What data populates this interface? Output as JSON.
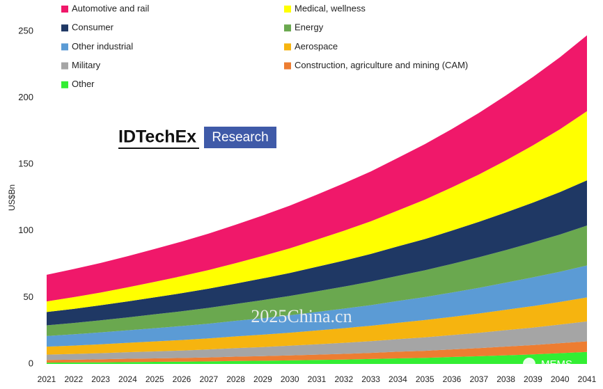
{
  "chart_data": {
    "type": "stacked_area",
    "y_label": "US$Bn",
    "x": [
      2021,
      2022,
      2023,
      2024,
      2025,
      2026,
      2027,
      2028,
      2029,
      2030,
      2031,
      2032,
      2033,
      2034,
      2035,
      2036,
      2037,
      2038,
      2039,
      2040,
      2041
    ],
    "xlim": [
      2021,
      2041
    ],
    "xticks": [
      2021,
      2022,
      2023,
      2024,
      2025,
      2026,
      2027,
      2028,
      2029,
      2030,
      2031,
      2032,
      2033,
      2034,
      2035,
      2036,
      2037,
      2038,
      2039,
      2040,
      2041
    ],
    "ylim": [
      0,
      250
    ],
    "yticks": [
      0,
      50,
      100,
      150,
      200,
      250
    ],
    "grid": false,
    "series": [
      {
        "name": "Automotive and rail",
        "color": "#f0186a",
        "values": [
          20,
          21.1,
          22.2,
          23.4,
          24.7,
          26.0,
          27.4,
          28.9,
          30.4,
          32.1,
          33.8,
          35.6,
          37.5,
          39.6,
          41.7,
          43.9,
          46.3,
          48.8,
          51.4,
          54.1,
          57
        ]
      },
      {
        "name": "Medical, wellness",
        "color": "#ffff00",
        "values": [
          8,
          8.8,
          9.6,
          10.6,
          11.6,
          12.8,
          14.0,
          15.4,
          16.9,
          18.5,
          20.4,
          22.4,
          24.5,
          26.9,
          29.6,
          32.5,
          35.6,
          39.1,
          43.0,
          47.2,
          52
        ]
      },
      {
        "name": "Consumer",
        "color": "#1f3864",
        "values": [
          10,
          10.6,
          11.3,
          12.0,
          12.8,
          13.6,
          14.4,
          15.3,
          16.3,
          17.3,
          18.4,
          19.6,
          20.8,
          22.2,
          23.5,
          25.0,
          26.6,
          28.3,
          30.0,
          31.9,
          34
        ]
      },
      {
        "name": "Energy",
        "color": "#6aa84f",
        "values": [
          8,
          8.5,
          9.1,
          9.7,
          10.4,
          11.1,
          11.9,
          12.7,
          13.6,
          14.5,
          15.5,
          16.5,
          17.7,
          18.9,
          20.1,
          21.5,
          23.0,
          24.5,
          26.2,
          28.0,
          30
        ]
      },
      {
        "name": "Other industrial",
        "color": "#5b9bd5",
        "values": [
          8,
          8.5,
          8.9,
          9.4,
          10,
          10.5,
          11.1,
          11.7,
          12.4,
          13.1,
          13.9,
          14.7,
          15.5,
          16.4,
          17.3,
          18.3,
          19.3,
          20.4,
          21.6,
          22.7,
          24
        ]
      },
      {
        "name": "Aerospace",
        "color": "#f6b40f",
        "values": [
          6,
          6.3,
          6.7,
          7.1,
          7.5,
          7.9,
          8.3,
          8.8,
          9.3,
          9.8,
          10.4,
          11.0,
          11.6,
          12.3,
          13.0,
          13.7,
          14.5,
          15.3,
          16.2,
          17.0,
          18
        ]
      },
      {
        "name": "Military",
        "color": "#a5a5a5",
        "values": [
          4,
          4.3,
          4.6,
          4.9,
          5.2,
          5.6,
          6.0,
          6.4,
          6.8,
          7.3,
          7.8,
          8.3,
          8.8,
          9.4,
          10.1,
          10.8,
          11.5,
          12.3,
          13.1,
          14.0,
          15
        ]
      },
      {
        "name": "Construction, agriculture and mining (CAM)",
        "color": "#ed7d31",
        "values": [
          2,
          2.1,
          2.3,
          2.5,
          2.6,
          2.8,
          3.0,
          3.3,
          3.5,
          3.7,
          4.0,
          4.3,
          4.6,
          5.0,
          5.3,
          5.7,
          6.1,
          6.6,
          7.0,
          7.5,
          8
        ]
      },
      {
        "name": "Other",
        "color": "#33ee33",
        "values": [
          1,
          1.1,
          1.2,
          1.4,
          1.6,
          1.7,
          1.9,
          2.2,
          2.4,
          2.7,
          3.0,
          3.3,
          3.7,
          4.2,
          4.6,
          5.2,
          5.8,
          6.5,
          7.2,
          8.1,
          9
        ]
      }
    ],
    "annotations": [
      "IDTechEx",
      "Research",
      "2025China.cn",
      "MEMS"
    ]
  }
}
